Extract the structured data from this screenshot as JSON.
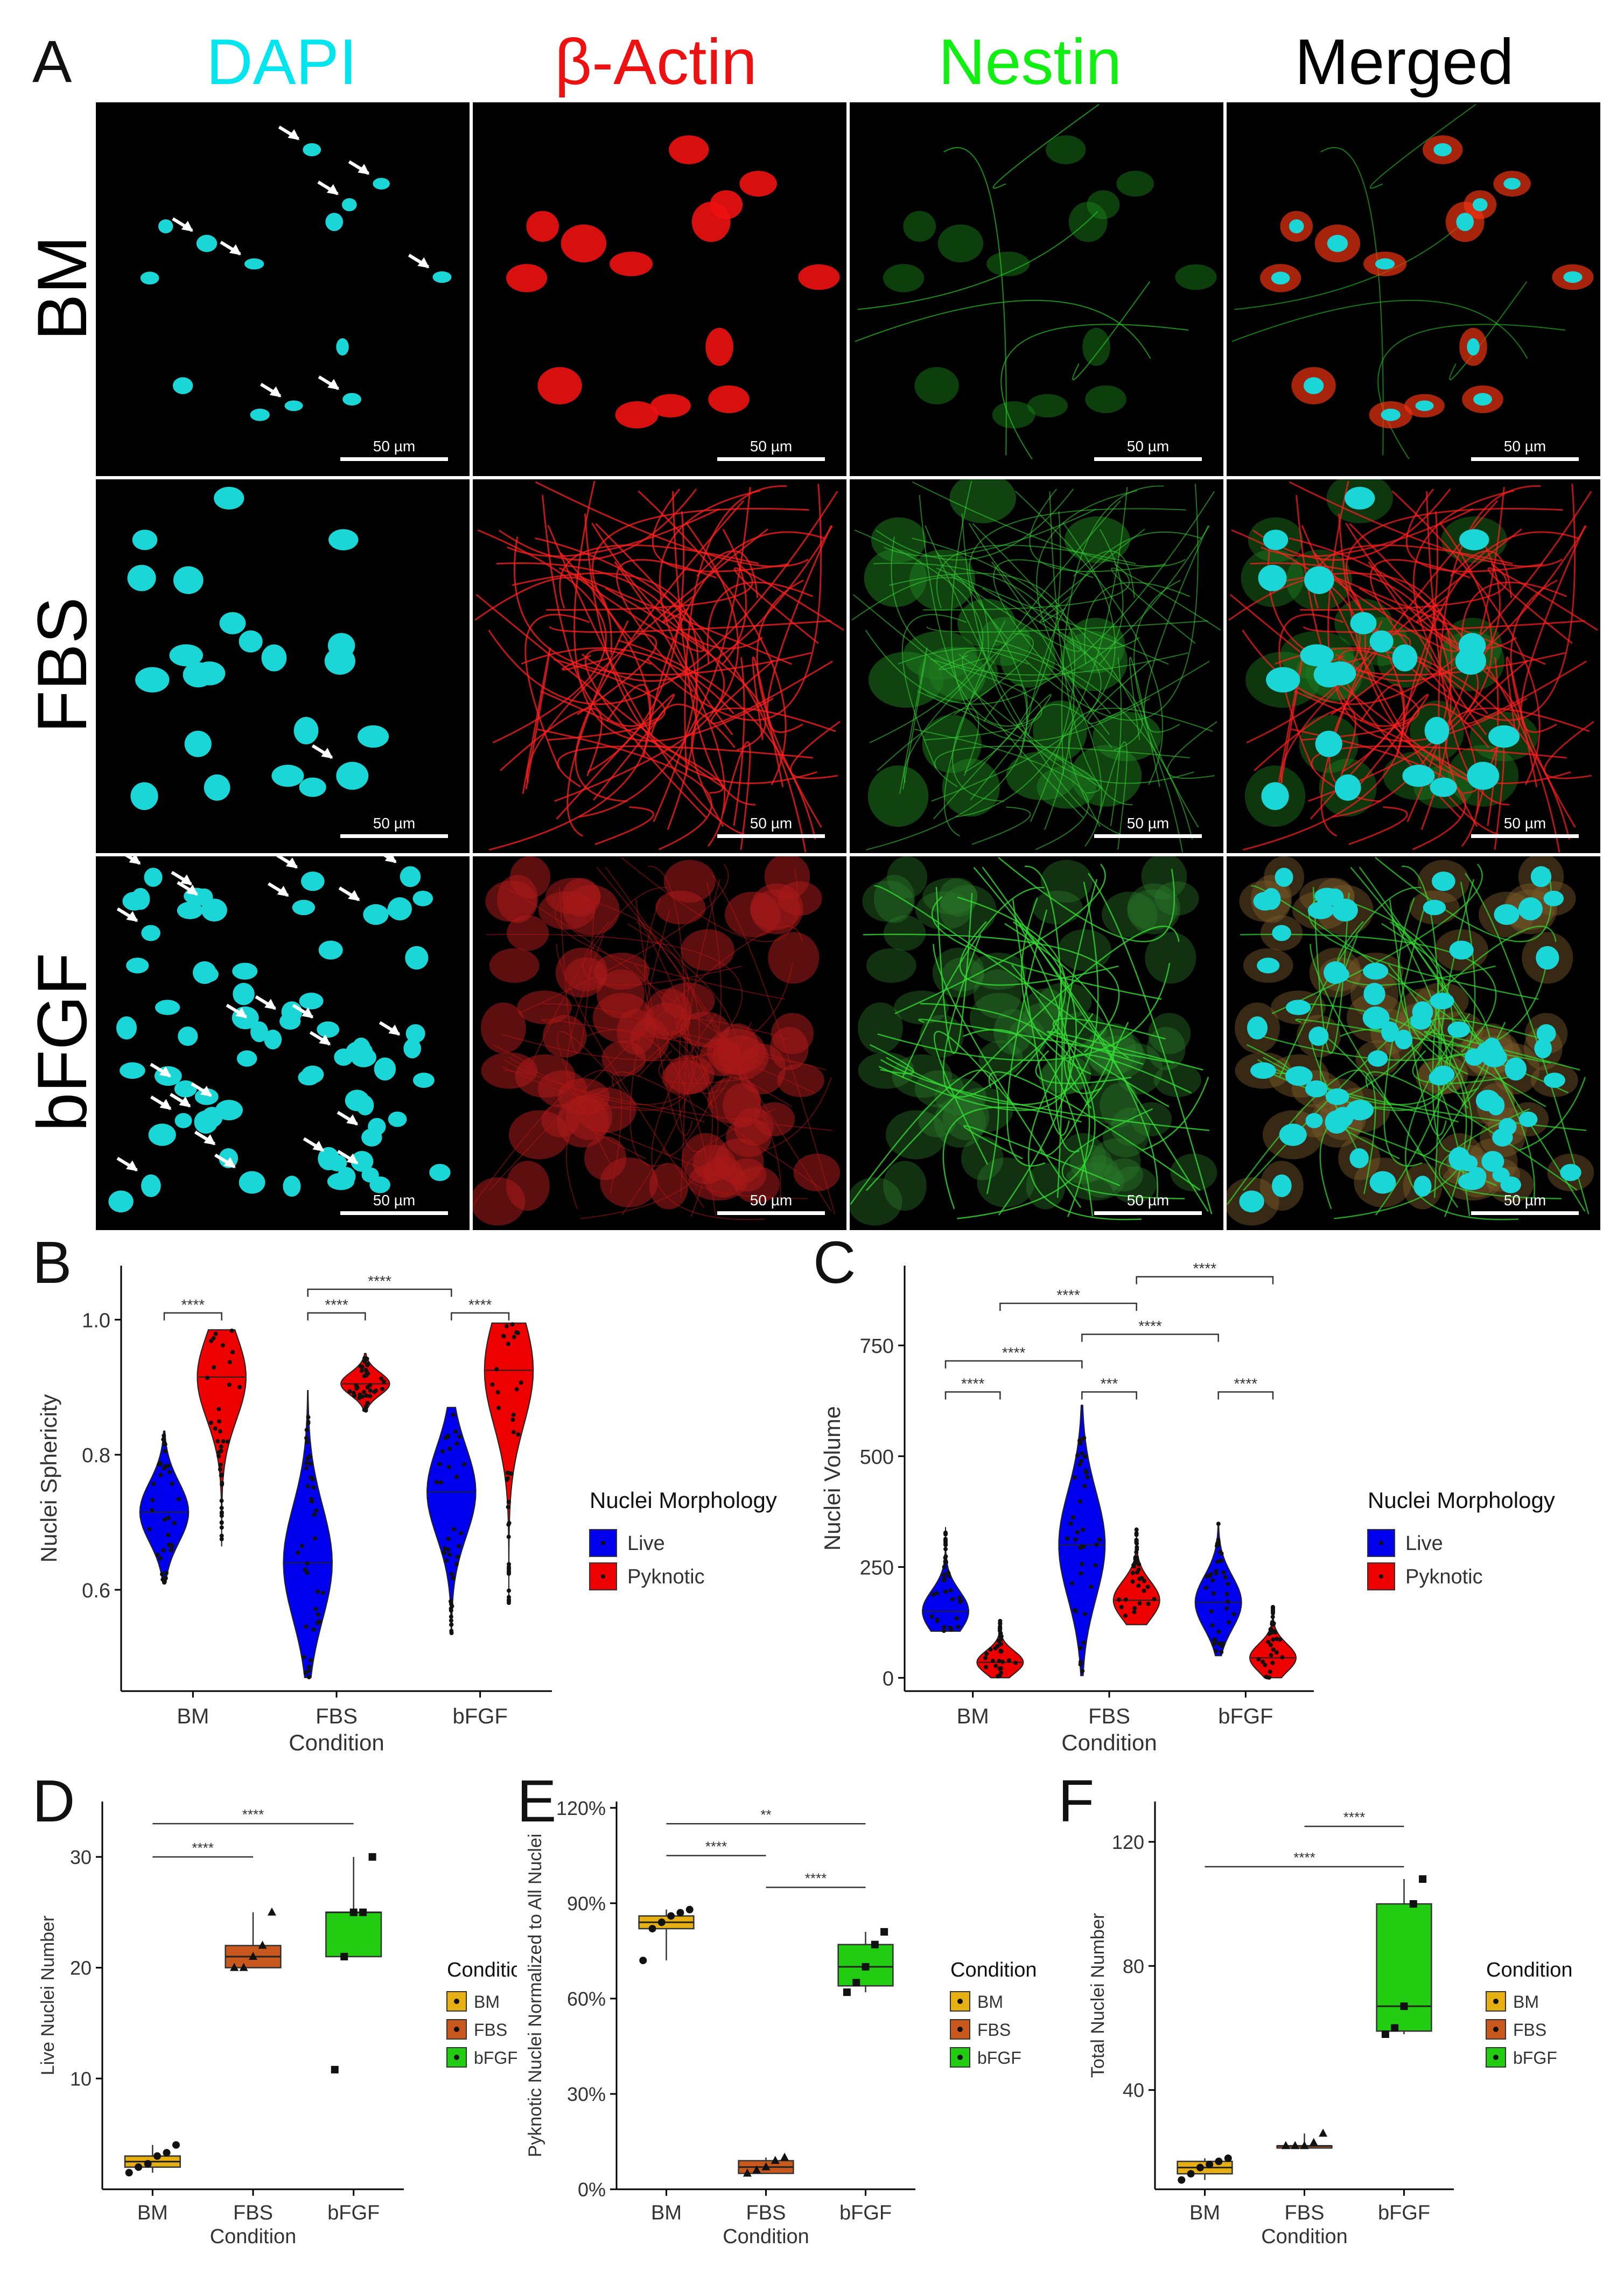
{
  "panel_letters": {
    "a": "A",
    "b": "B",
    "c": "C",
    "d": "D",
    "e": "E",
    "f": "F"
  },
  "micrograph": {
    "columns": [
      {
        "label": "DAPI",
        "color": "#00e5ee"
      },
      {
        "label": "β-Actin",
        "color": "#ee1111"
      },
      {
        "label": "Nestin",
        "color": "#11ee11"
      },
      {
        "label": "Merged",
        "color": "#000000"
      }
    ],
    "rows": [
      "BM",
      "FBS",
      "bFGF"
    ],
    "scale_label": "50 µm"
  },
  "chart_data": [
    {
      "id": "B",
      "type": "violin",
      "categories": [
        "BM",
        "FBS",
        "bFGF"
      ],
      "xlabel": "Condition",
      "ylabel": "Nuclei Sphericity",
      "ylim": [
        0.45,
        1.08
      ],
      "yticks": [
        0.6,
        0.8,
        1.0
      ],
      "ytick_labels": [
        "0.6",
        "0.8",
        "1.0"
      ],
      "legend_title": "Nuclei Morphology",
      "series": [
        {
          "name": "Live",
          "color": "#0000ee",
          "median": [
            0.715,
            0.64,
            0.745
          ],
          "range": [
            [
              0.61,
              0.835
            ],
            [
              0.47,
              0.895
            ],
            [
              0.535,
              0.87
            ]
          ]
        },
        {
          "name": "Pyknotic",
          "color": "#ee0000",
          "median": [
            0.915,
            0.905,
            0.925
          ],
          "range": [
            [
              0.665,
              0.985
            ],
            [
              0.865,
              0.95
            ],
            [
              0.58,
              0.995
            ]
          ]
        }
      ],
      "significance": [
        {
          "label": "****",
          "from": "BM Live",
          "to": "BM Pyknotic",
          "y": 1.01
        },
        {
          "label": "****",
          "from": "FBS Live",
          "to": "FBS Pyknotic",
          "y": 1.01
        },
        {
          "label": "****",
          "from": "bFGF Live",
          "to": "bFGF Pyknotic",
          "y": 1.01
        },
        {
          "label": "****",
          "from": "FBS Live",
          "to": "bFGF Live",
          "y": 1.045
        }
      ]
    },
    {
      "id": "C",
      "type": "violin",
      "categories": [
        "BM",
        "FBS",
        "bFGF"
      ],
      "xlabel": "Condition",
      "ylabel": "Nuclei Volume",
      "ylim": [
        -30,
        930
      ],
      "yticks": [
        0,
        250,
        500,
        750
      ],
      "ytick_labels": [
        "0",
        "250",
        "500",
        "750"
      ],
      "legend_title": "Nuclei Morphology",
      "series": [
        {
          "name": "Live",
          "color": "#0000ee",
          "median": [
            150,
            300,
            170
          ],
          "range": [
            [
              105,
              340
            ],
            [
              5,
              615
            ],
            [
              50,
              350
            ]
          ]
        },
        {
          "name": "Pyknotic",
          "color": "#ee0000",
          "median": [
            35,
            175,
            45
          ],
          "range": [
            [
              0,
              130
            ],
            [
              120,
              335
            ],
            [
              0,
              160
            ]
          ]
        }
      ],
      "significance": [
        {
          "label": "****",
          "from": "BM Live",
          "to": "BM Pyknotic",
          "y": 645
        },
        {
          "label": "***",
          "from": "FBS Live",
          "to": "FBS Pyknotic",
          "y": 645
        },
        {
          "label": "****",
          "from": "bFGF Live",
          "to": "bFGF Pyknotic",
          "y": 645
        },
        {
          "label": "****",
          "from": "BM Live",
          "to": "FBS Live",
          "y": 715
        },
        {
          "label": "****",
          "from": "FBS Live",
          "to": "bFGF Live",
          "y": 775
        },
        {
          "label": "****",
          "from": "BM Pyknotic",
          "to": "FBS Pyknotic",
          "y": 845
        },
        {
          "label": "****",
          "from": "FBS Pyknotic",
          "to": "bFGF Pyknotic",
          "y": 905
        }
      ]
    },
    {
      "id": "D",
      "type": "box",
      "categories": [
        "BM",
        "FBS",
        "bFGF"
      ],
      "xlabel": "Condition",
      "ylabel": "Live Nuclei Number",
      "ylim": [
        0,
        35
      ],
      "yticks": [
        10,
        20,
        30
      ],
      "ytick_labels": [
        "10",
        "20",
        "30"
      ],
      "legend_title": "Condition",
      "legend": [
        "BM",
        "FBS",
        "bFGF"
      ],
      "colors": [
        "#e6b012",
        "#c8581c",
        "#22cc11"
      ],
      "boxes": [
        {
          "q1": 2,
          "median": 2.5,
          "q3": 3,
          "min": 1.5,
          "max": 4,
          "points": [
            1.5,
            2,
            2.3,
            3,
            3.3,
            4
          ]
        },
        {
          "q1": 20,
          "median": 21,
          "q3": 22,
          "min": 20,
          "max": 25,
          "points": [
            20,
            20,
            21,
            22,
            25
          ]
        },
        {
          "q1": 21,
          "median": 25,
          "q3": 25,
          "min": 21,
          "max": 30,
          "points": [
            10.8,
            21,
            25,
            25,
            30
          ]
        }
      ],
      "significance": [
        {
          "label": "****",
          "from": "BM",
          "to": "FBS",
          "y": 30
        },
        {
          "label": "****",
          "from": "BM",
          "to": "bFGF",
          "y": 33
        }
      ]
    },
    {
      "id": "E",
      "type": "box",
      "categories": [
        "BM",
        "FBS",
        "bFGF"
      ],
      "xlabel": "Condition",
      "ylabel": "Pyknotic Nuclei Normalized to All Nuclei",
      "ylim": [
        0,
        1.22
      ],
      "yticks": [
        0,
        0.3,
        0.6,
        0.9,
        1.2
      ],
      "ytick_labels": [
        "0%",
        "30%",
        "60%",
        "90%",
        "120%"
      ],
      "legend_title": "Condition",
      "legend": [
        "BM",
        "FBS",
        "bFGF"
      ],
      "colors": [
        "#e6b012",
        "#c8581c",
        "#22cc11"
      ],
      "boxes": [
        {
          "q1": 0.82,
          "median": 0.84,
          "q3": 0.86,
          "min": 0.72,
          "max": 0.88,
          "points": [
            0.72,
            0.82,
            0.84,
            0.86,
            0.87,
            0.88
          ]
        },
        {
          "q1": 0.05,
          "median": 0.07,
          "q3": 0.09,
          "min": 0.05,
          "max": 0.1,
          "points": [
            0.05,
            0.06,
            0.07,
            0.09,
            0.1
          ]
        },
        {
          "q1": 0.64,
          "median": 0.7,
          "q3": 0.77,
          "min": 0.62,
          "max": 0.81,
          "points": [
            0.62,
            0.65,
            0.7,
            0.77,
            0.81
          ]
        }
      ],
      "significance": [
        {
          "label": "****",
          "from": "BM",
          "to": "FBS",
          "y": 1.05
        },
        {
          "label": "****",
          "from": "FBS",
          "to": "bFGF",
          "y": 0.95
        },
        {
          "label": "**",
          "from": "BM",
          "to": "bFGF",
          "y": 1.15
        }
      ]
    },
    {
      "id": "F",
      "type": "box",
      "categories": [
        "BM",
        "FBS",
        "bFGF"
      ],
      "xlabel": "Condition",
      "ylabel": "Total Nuclei Number",
      "ylim": [
        8,
        133
      ],
      "yticks": [
        40,
        80,
        120
      ],
      "ytick_labels": [
        "40",
        "80",
        "120"
      ],
      "legend_title": "Condition",
      "legend": [
        "BM",
        "FBS",
        "bFGF"
      ],
      "colors": [
        "#e6b012",
        "#c8581c",
        "#22cc11"
      ],
      "boxes": [
        {
          "q1": 13,
          "median": 15,
          "q3": 17,
          "min": 11,
          "max": 18,
          "points": [
            11,
            13,
            15,
            16,
            17,
            18
          ]
        },
        {
          "q1": 22,
          "median": 22,
          "q3": 22,
          "min": 22,
          "max": 26,
          "points": [
            22,
            22,
            22,
            23,
            26
          ]
        },
        {
          "q1": 59,
          "median": 67,
          "q3": 100,
          "min": 58,
          "max": 108,
          "points": [
            58,
            60,
            67,
            100,
            108
          ]
        }
      ],
      "significance": [
        {
          "label": "****",
          "from": "FBS",
          "to": "bFGF",
          "y": 125
        },
        {
          "label": "****",
          "from": "BM",
          "to": "bFGF",
          "y": 112
        }
      ]
    }
  ]
}
